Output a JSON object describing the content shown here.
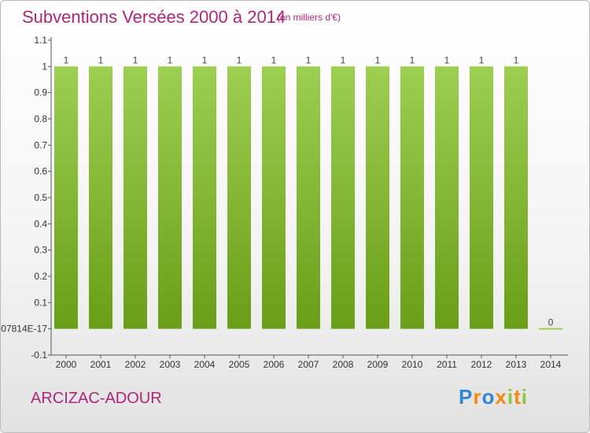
{
  "header": {
    "title": "Subventions Versées 2000 à 2014",
    "unit_note": "(en milliers d'€)"
  },
  "footer": {
    "commune": "ARCIZAC-ADOUR",
    "logo_text": "Proxiti"
  },
  "colors": {
    "title": "#b0257a",
    "bar_top": "#9ccf52",
    "bar_bottom": "#6a9e17"
  },
  "chart_data": {
    "type": "bar",
    "title": "Subventions Versées 2000 à 2014",
    "subtitle": "(en milliers d'€)",
    "categories": [
      "2000",
      "2001",
      "2002",
      "2003",
      "2004",
      "2005",
      "2006",
      "2007",
      "2008",
      "2009",
      "2010",
      "2011",
      "2012",
      "2013",
      "2014"
    ],
    "values": [
      1,
      1,
      1,
      1,
      1,
      1,
      1,
      1,
      1,
      1,
      1,
      1,
      1,
      1,
      0
    ],
    "data_labels": [
      "1",
      "1",
      "1",
      "1",
      "1",
      "1",
      "1",
      "1",
      "1",
      "1",
      "1",
      "1",
      "1",
      "1",
      "0"
    ],
    "y_ticks": [
      -0.1,
      0,
      0.1,
      0.2,
      0.3,
      0.4,
      0.5,
      0.6,
      0.7,
      0.8,
      0.9,
      1,
      1.1
    ],
    "y_tick_labels": [
      "-0.1",
      "07814E-17",
      "0.1",
      "0.2",
      "0.3",
      "0.4",
      "0.5",
      "0.6",
      "0.7",
      "0.8",
      "0.9",
      "1",
      "1.1"
    ],
    "ylim": [
      -0.1,
      1.1
    ],
    "grid": false,
    "legend": "none"
  }
}
